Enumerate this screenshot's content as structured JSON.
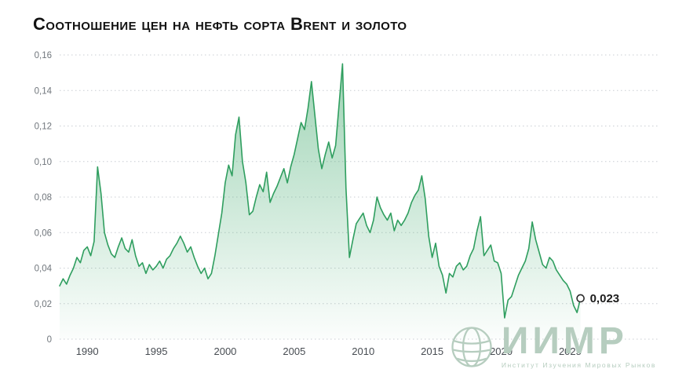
{
  "title": "Соотношение цен на нефть сорта Brent и золото",
  "watermark": {
    "name": "ИИМР",
    "subtitle": "Институт Изучения Мировых Рынков"
  },
  "colors": {
    "line": "#2f9e5f",
    "fill": "#4fb078",
    "watermark": "#b6cdbf",
    "grid": "#c9ced3"
  },
  "chart_data": {
    "type": "area",
    "title": "Соотношение цен на нефть сорта Brent и золото",
    "series_name": "Brent oil price / gold price ratio",
    "xlim": [
      1988,
      2026
    ],
    "ylim": [
      0,
      0.16
    ],
    "grid": "horizontal-dotted",
    "legend": "none",
    "last_point_label": "0,023",
    "last_point_value": 0.023,
    "y_ticks": [
      {
        "v": 0,
        "label": "0"
      },
      {
        "v": 0.02,
        "label": "0,02"
      },
      {
        "v": 0.04,
        "label": "0,04"
      },
      {
        "v": 0.06,
        "label": "0,06"
      },
      {
        "v": 0.08,
        "label": "0,08"
      },
      {
        "v": 0.1,
        "label": "0,10"
      },
      {
        "v": 0.12,
        "label": "0,12"
      },
      {
        "v": 0.14,
        "label": "0,14"
      },
      {
        "v": 0.16,
        "label": "0,16"
      }
    ],
    "x_ticks": [
      {
        "v": 1990,
        "label": "1990"
      },
      {
        "v": 1995,
        "label": "1995"
      },
      {
        "v": 2000,
        "label": "2000"
      },
      {
        "v": 2005,
        "label": "2005"
      },
      {
        "v": 2010,
        "label": "2010"
      },
      {
        "v": 2015,
        "label": "2015"
      },
      {
        "v": 2020,
        "label": "2020"
      },
      {
        "v": 2025,
        "label": "2025"
      }
    ],
    "x": [
      1988.0,
      1988.25,
      1988.5,
      1988.75,
      1989.0,
      1989.25,
      1989.5,
      1989.75,
      1990.0,
      1990.25,
      1990.5,
      1990.75,
      1991.0,
      1991.25,
      1991.5,
      1991.75,
      1992.0,
      1992.25,
      1992.5,
      1992.75,
      1993.0,
      1993.25,
      1993.5,
      1993.75,
      1994.0,
      1994.25,
      1994.5,
      1994.75,
      1995.0,
      1995.25,
      1995.5,
      1995.75,
      1996.0,
      1996.25,
      1996.5,
      1996.75,
      1997.0,
      1997.25,
      1997.5,
      1997.75,
      1998.0,
      1998.25,
      1998.5,
      1998.75,
      1999.0,
      1999.25,
      1999.5,
      1999.75,
      2000.0,
      2000.25,
      2000.5,
      2000.75,
      2001.0,
      2001.25,
      2001.5,
      2001.75,
      2002.0,
      2002.25,
      2002.5,
      2002.75,
      2003.0,
      2003.25,
      2003.5,
      2003.75,
      2004.0,
      2004.25,
      2004.5,
      2004.75,
      2005.0,
      2005.25,
      2005.5,
      2005.75,
      2006.0,
      2006.25,
      2006.5,
      2006.75,
      2007.0,
      2007.25,
      2007.5,
      2007.75,
      2008.0,
      2008.25,
      2008.5,
      2008.75,
      2009.0,
      2009.25,
      2009.5,
      2009.75,
      2010.0,
      2010.25,
      2010.5,
      2010.75,
      2011.0,
      2011.25,
      2011.5,
      2011.75,
      2012.0,
      2012.25,
      2012.5,
      2012.75,
      2013.0,
      2013.25,
      2013.5,
      2013.75,
      2014.0,
      2014.25,
      2014.5,
      2014.75,
      2015.0,
      2015.25,
      2015.5,
      2015.75,
      2016.0,
      2016.25,
      2016.5,
      2016.75,
      2017.0,
      2017.25,
      2017.5,
      2017.75,
      2018.0,
      2018.25,
      2018.5,
      2018.75,
      2019.0,
      2019.25,
      2019.5,
      2019.75,
      2020.0,
      2020.25,
      2020.5,
      2020.75,
      2021.0,
      2021.25,
      2021.5,
      2021.75,
      2022.0,
      2022.25,
      2022.5,
      2022.75,
      2023.0,
      2023.25,
      2023.5,
      2023.75,
      2024.0,
      2024.25,
      2024.5,
      2024.75,
      2025.0,
      2025.25,
      2025.5,
      2025.75
    ],
    "values": [
      0.03,
      0.034,
      0.031,
      0.036,
      0.04,
      0.046,
      0.043,
      0.05,
      0.052,
      0.047,
      0.055,
      0.097,
      0.082,
      0.06,
      0.053,
      0.048,
      0.046,
      0.052,
      0.057,
      0.051,
      0.049,
      0.056,
      0.047,
      0.041,
      0.043,
      0.037,
      0.042,
      0.039,
      0.041,
      0.044,
      0.04,
      0.045,
      0.047,
      0.051,
      0.054,
      0.058,
      0.054,
      0.049,
      0.052,
      0.046,
      0.041,
      0.037,
      0.04,
      0.034,
      0.037,
      0.047,
      0.059,
      0.071,
      0.088,
      0.098,
      0.092,
      0.115,
      0.125,
      0.1,
      0.088,
      0.07,
      0.072,
      0.08,
      0.087,
      0.083,
      0.094,
      0.077,
      0.082,
      0.086,
      0.091,
      0.096,
      0.088,
      0.097,
      0.104,
      0.113,
      0.122,
      0.118,
      0.13,
      0.145,
      0.126,
      0.107,
      0.096,
      0.104,
      0.111,
      0.102,
      0.109,
      0.132,
      0.155,
      0.085,
      0.046,
      0.056,
      0.065,
      0.068,
      0.071,
      0.064,
      0.06,
      0.067,
      0.08,
      0.074,
      0.07,
      0.067,
      0.071,
      0.061,
      0.067,
      0.064,
      0.067,
      0.071,
      0.077,
      0.081,
      0.084,
      0.092,
      0.079,
      0.058,
      0.046,
      0.054,
      0.041,
      0.036,
      0.026,
      0.037,
      0.035,
      0.041,
      0.043,
      0.039,
      0.041,
      0.047,
      0.051,
      0.061,
      0.069,
      0.047,
      0.05,
      0.053,
      0.044,
      0.043,
      0.037,
      0.012,
      0.022,
      0.024,
      0.03,
      0.036,
      0.04,
      0.044,
      0.051,
      0.066,
      0.056,
      0.049,
      0.042,
      0.04,
      0.046,
      0.044,
      0.039,
      0.036,
      0.033,
      0.031,
      0.027,
      0.019,
      0.015,
      0.023
    ]
  }
}
